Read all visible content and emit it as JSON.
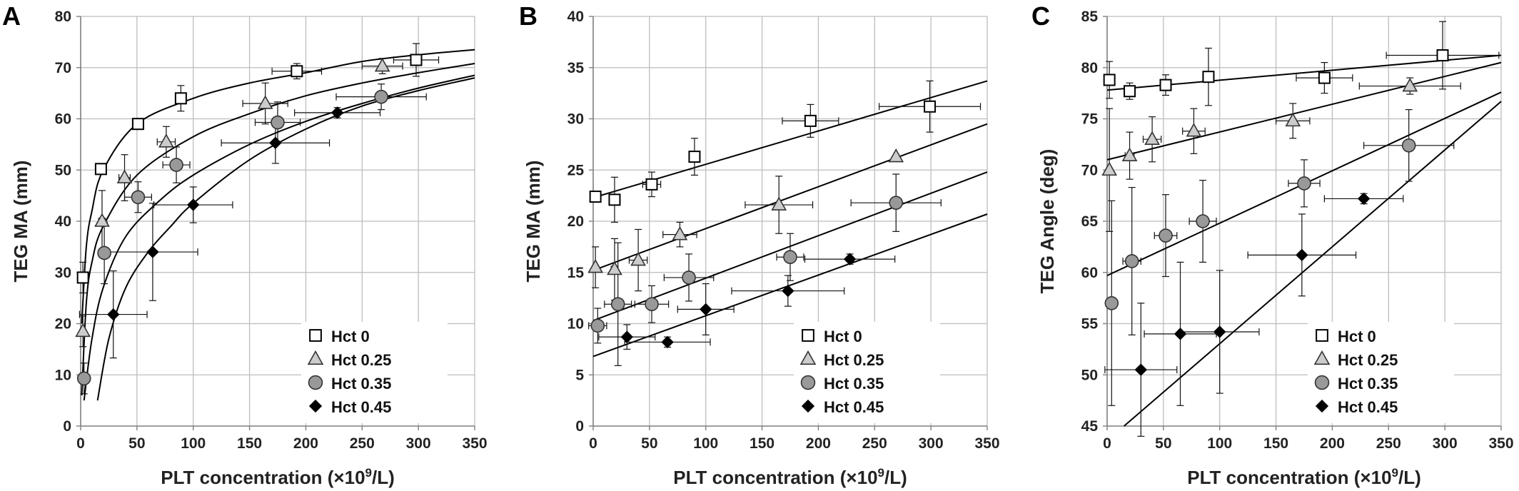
{
  "chart_data": [
    {
      "type": "scatter",
      "panel_label": "A",
      "xlabel": "PLT concentration (×10⁹/L)",
      "ylabel": "TEG MA (mm)",
      "xlim": [
        0,
        350
      ],
      "ylim": [
        0,
        80
      ],
      "xticks": [
        "0",
        "50",
        "100",
        "150",
        "200",
        "250",
        "300",
        "350"
      ],
      "yticks": [
        "0",
        "10",
        "20",
        "30",
        "40",
        "50",
        "60",
        "70",
        "80"
      ],
      "grid": true,
      "legend_position": "bottom-right",
      "fit": "logarithmic",
      "series": [
        {
          "name": "Hct 0",
          "marker": "square",
          "color": "#ffffff",
          "points": [
            {
              "x": 2,
              "y": 29,
              "xerr": 2,
              "yerr": 3
            },
            {
              "x": 18,
              "y": 50.2,
              "xerr": 3,
              "yerr": 1
            },
            {
              "x": 51,
              "y": 59,
              "xerr": 5,
              "yerr": 1
            },
            {
              "x": 89,
              "y": 64,
              "xerr": 4,
              "yerr": 2.5
            },
            {
              "x": 192,
              "y": 69.3,
              "xerr": 22,
              "yerr": 1.5
            },
            {
              "x": 298,
              "y": 71.5,
              "xerr": 20,
              "yerr": 3.2
            }
          ],
          "fit_curve": [
            [
              1,
              20
            ],
            [
              5,
              35
            ],
            [
              10,
              42
            ],
            [
              20,
              50
            ],
            [
              50,
              59
            ],
            [
              100,
              64
            ],
            [
              150,
              67
            ],
            [
              200,
              69
            ],
            [
              250,
              71.2
            ],
            [
              300,
              72.5
            ],
            [
              350,
              73.5
            ]
          ]
        },
        {
          "name": "Hct 0.25",
          "marker": "triangle",
          "color": "#cccccc",
          "points": [
            {
              "x": 2,
              "y": 18.5,
              "xerr": 2,
              "yerr": 3
            },
            {
              "x": 19,
              "y": 40,
              "xerr": 3,
              "yerr": 6
            },
            {
              "x": 39,
              "y": 48.5,
              "xerr": 5,
              "yerr": 4.5
            },
            {
              "x": 76,
              "y": 55.5,
              "xerr": 8,
              "yerr": 3
            },
            {
              "x": 164,
              "y": 63,
              "xerr": 20,
              "yerr": 4
            },
            {
              "x": 268,
              "y": 70.3,
              "xerr": 18,
              "yerr": 1.5
            }
          ],
          "fit_curve": [
            [
              1,
              6
            ],
            [
              5,
              24
            ],
            [
              10,
              32
            ],
            [
              20,
              39
            ],
            [
              50,
              49
            ],
            [
              100,
              56.5
            ],
            [
              150,
              61
            ],
            [
              200,
              64.5
            ],
            [
              250,
              67
            ],
            [
              300,
              69
            ],
            [
              350,
              70.8
            ]
          ]
        },
        {
          "name": "Hct 0.35",
          "marker": "circle",
          "color": "#999999",
          "points": [
            {
              "x": 3,
              "y": 9.3,
              "xerr": 3,
              "yerr": 3
            },
            {
              "x": 21,
              "y": 33.8,
              "xerr": 5,
              "yerr": 6
            },
            {
              "x": 51,
              "y": 44.7,
              "xerr": 12,
              "yerr": 3
            },
            {
              "x": 85,
              "y": 51,
              "xerr": 12,
              "yerr": 3.5
            },
            {
              "x": 175,
              "y": 59.3,
              "xerr": 20,
              "yerr": 4
            },
            {
              "x": 267,
              "y": 64.3,
              "xerr": 40,
              "yerr": 2.5
            }
          ],
          "fit_curve": [
            [
              3,
              5
            ],
            [
              10,
              17
            ],
            [
              20,
              27
            ],
            [
              40,
              37
            ],
            [
              70,
              44
            ],
            [
              100,
              49
            ],
            [
              150,
              55
            ],
            [
              200,
              59.5
            ],
            [
              250,
              63
            ],
            [
              300,
              66
            ],
            [
              350,
              68.5
            ]
          ]
        },
        {
          "name": "Hct 0.45",
          "marker": "diamond",
          "color": "#000000",
          "points": [
            {
              "x": 29,
              "y": 21.8,
              "xerr": 30,
              "yerr": 8.5
            },
            {
              "x": 64,
              "y": 34,
              "xerr": 40,
              "yerr": 9.5
            },
            {
              "x": 100,
              "y": 43.2,
              "xerr": 35,
              "yerr": 3.5
            },
            {
              "x": 173,
              "y": 55.3,
              "xerr": 48,
              "yerr": 4
            },
            {
              "x": 228,
              "y": 61.2,
              "xerr": 38,
              "yerr": 1
            }
          ],
          "fit_curve": [
            [
              15,
              5
            ],
            [
              25,
              17
            ],
            [
              40,
              27
            ],
            [
              60,
              34
            ],
            [
              80,
              39
            ],
            [
              100,
              43.5
            ],
            [
              150,
              52
            ],
            [
              200,
              58
            ],
            [
              250,
              62.5
            ],
            [
              300,
              65.5
            ],
            [
              350,
              68
            ]
          ]
        }
      ]
    },
    {
      "type": "scatter",
      "panel_label": "B",
      "xlabel": "PLT concentration (×10⁹/L)",
      "ylabel": "TEG MA (mm)",
      "xlim": [
        0,
        350
      ],
      "ylim": [
        0,
        40
      ],
      "xticks": [
        "0",
        "50",
        "100",
        "150",
        "200",
        "250",
        "300",
        "350"
      ],
      "yticks": [
        "0",
        "5",
        "10",
        "15",
        "20",
        "25",
        "30",
        "35",
        "40"
      ],
      "grid": true,
      "legend_position": "bottom-right",
      "fit": "linear",
      "series": [
        {
          "name": "Hct 0",
          "marker": "square",
          "color": "#ffffff",
          "points": [
            {
              "x": 2,
              "y": 22.4,
              "xerr": 0,
              "yerr": 0
            },
            {
              "x": 19,
              "y": 22.1,
              "xerr": 4,
              "yerr": 2.2
            },
            {
              "x": 52,
              "y": 23.6,
              "xerr": 8,
              "yerr": 1.2
            },
            {
              "x": 90,
              "y": 26.3,
              "xerr": 3,
              "yerr": 1.8
            },
            {
              "x": 193,
              "y": 29.8,
              "xerr": 25,
              "yerr": 1.6
            },
            {
              "x": 299,
              "y": 31.2,
              "xerr": 45,
              "yerr": 2.5
            }
          ],
          "fit_line": [
            [
              0,
              22.3
            ],
            [
              350,
              33.7
            ]
          ]
        },
        {
          "name": "Hct 0.25",
          "marker": "triangle",
          "color": "#cccccc",
          "points": [
            {
              "x": 2,
              "y": 15.5,
              "xerr": 2,
              "yerr": 2
            },
            {
              "x": 19,
              "y": 15.3,
              "xerr": 3,
              "yerr": 3
            },
            {
              "x": 40,
              "y": 16.2,
              "xerr": 8,
              "yerr": 3
            },
            {
              "x": 77,
              "y": 18.7,
              "xerr": 15,
              "yerr": 1.2
            },
            {
              "x": 165,
              "y": 21.6,
              "xerr": 30,
              "yerr": 2.8
            },
            {
              "x": 269,
              "y": 26.3,
              "xerr": 0,
              "yerr": 0
            }
          ],
          "fit_line": [
            [
              0,
              15.2
            ],
            [
              350,
              29.5
            ]
          ]
        },
        {
          "name": "Hct 0.35",
          "marker": "circle",
          "color": "#999999",
          "points": [
            {
              "x": 4,
              "y": 9.8,
              "xerr": 8,
              "yerr": 1.7
            },
            {
              "x": 22,
              "y": 11.9,
              "xerr": 12,
              "yerr": 6
            },
            {
              "x": 52,
              "y": 11.9,
              "xerr": 15,
              "yerr": 1.8
            },
            {
              "x": 85,
              "y": 14.5,
              "xerr": 22,
              "yerr": 2.3
            },
            {
              "x": 175,
              "y": 16.5,
              "xerr": 12,
              "yerr": 2.3
            },
            {
              "x": 269,
              "y": 21.8,
              "xerr": 40,
              "yerr": 2.8
            }
          ],
          "fit_line": [
            [
              0,
              10.3
            ],
            [
              350,
              24.8
            ]
          ]
        },
        {
          "name": "Hct 0.45",
          "marker": "diamond",
          "color": "#000000",
          "points": [
            {
              "x": 30,
              "y": 8.7,
              "xerr": 25,
              "yerr": 1.2
            },
            {
              "x": 66,
              "y": 8.2,
              "xerr": 38,
              "yerr": 0.5
            },
            {
              "x": 100,
              "y": 11.4,
              "xerr": 25,
              "yerr": 2.5
            },
            {
              "x": 173,
              "y": 13.2,
              "xerr": 50,
              "yerr": 1.5
            },
            {
              "x": 228,
              "y": 16.3,
              "xerr": 40,
              "yerr": 0.5
            }
          ],
          "fit_line": [
            [
              0,
              6.8
            ],
            [
              350,
              20.7
            ]
          ]
        }
      ]
    },
    {
      "type": "scatter",
      "panel_label": "C",
      "xlabel": "PLT concentration (×10⁹/L)",
      "ylabel": "TEG Angle (deg)",
      "xlim": [
        0,
        350
      ],
      "ylim": [
        45,
        85
      ],
      "xticks": [
        "0",
        "50",
        "100",
        "150",
        "200",
        "250",
        "300",
        "350"
      ],
      "yticks": [
        "45",
        "50",
        "55",
        "60",
        "65",
        "70",
        "75",
        "80",
        "85"
      ],
      "grid": true,
      "legend_position": "bottom-left",
      "fit": "linear",
      "series": [
        {
          "name": "Hct 0",
          "marker": "square",
          "color": "#ffffff",
          "points": [
            {
              "x": 2,
              "y": 78.8,
              "xerr": 0,
              "yerr": 1.8
            },
            {
              "x": 20,
              "y": 77.7,
              "xerr": 4,
              "yerr": 0.8
            },
            {
              "x": 52,
              "y": 78.3,
              "xerr": 5,
              "yerr": 1
            },
            {
              "x": 90,
              "y": 79.1,
              "xerr": 5,
              "yerr": 2.8
            },
            {
              "x": 193,
              "y": 79,
              "xerr": 25,
              "yerr": 1.5
            },
            {
              "x": 298,
              "y": 81.2,
              "xerr": 50,
              "yerr": 3.3
            }
          ],
          "fit_line": [
            [
              0,
              77.8
            ],
            [
              350,
              81.2
            ]
          ]
        },
        {
          "name": "Hct 0.25",
          "marker": "triangle",
          "color": "#cccccc",
          "points": [
            {
              "x": 2,
              "y": 70,
              "xerr": 2,
              "yerr": 6
            },
            {
              "x": 20,
              "y": 71.4,
              "xerr": 4,
              "yerr": 2.3
            },
            {
              "x": 40,
              "y": 73,
              "xerr": 8,
              "yerr": 2.2
            },
            {
              "x": 77,
              "y": 73.8,
              "xerr": 10,
              "yerr": 2.2
            },
            {
              "x": 165,
              "y": 74.8,
              "xerr": 15,
              "yerr": 1.7
            },
            {
              "x": 269,
              "y": 78.2,
              "xerr": 45,
              "yerr": 0.8
            }
          ],
          "fit_line": [
            [
              0,
              71
            ],
            [
              350,
              80.5
            ]
          ]
        },
        {
          "name": "Hct 0.35",
          "marker": "circle",
          "color": "#999999",
          "points": [
            {
              "x": 4,
              "y": 57,
              "xerr": 3,
              "yerr": 10
            },
            {
              "x": 22,
              "y": 61.1,
              "xerr": 8,
              "yerr": 7.2
            },
            {
              "x": 52,
              "y": 63.6,
              "xerr": 10,
              "yerr": 4
            },
            {
              "x": 85,
              "y": 65,
              "xerr": 12,
              "yerr": 4
            },
            {
              "x": 175,
              "y": 68.7,
              "xerr": 14,
              "yerr": 2.3
            },
            {
              "x": 268,
              "y": 72.4,
              "xerr": 40,
              "yerr": 3.5
            }
          ],
          "fit_line": [
            [
              0,
              59.7
            ],
            [
              350,
              77.6
            ]
          ]
        },
        {
          "name": "Hct 0.45",
          "marker": "diamond",
          "color": "#000000",
          "points": [
            {
              "x": 30,
              "y": 50.5,
              "xerr": 32,
              "yerr": 6.5
            },
            {
              "x": 65,
              "y": 54,
              "xerr": 32,
              "yerr": 7
            },
            {
              "x": 100,
              "y": 54.2,
              "xerr": 35,
              "yerr": 6
            },
            {
              "x": 173,
              "y": 61.7,
              "xerr": 48,
              "yerr": 4
            },
            {
              "x": 228,
              "y": 67.2,
              "xerr": 35,
              "yerr": 0.5
            }
          ],
          "fit_line": [
            [
              15,
              45
            ],
            [
              350,
              76.7
            ]
          ]
        }
      ]
    }
  ]
}
